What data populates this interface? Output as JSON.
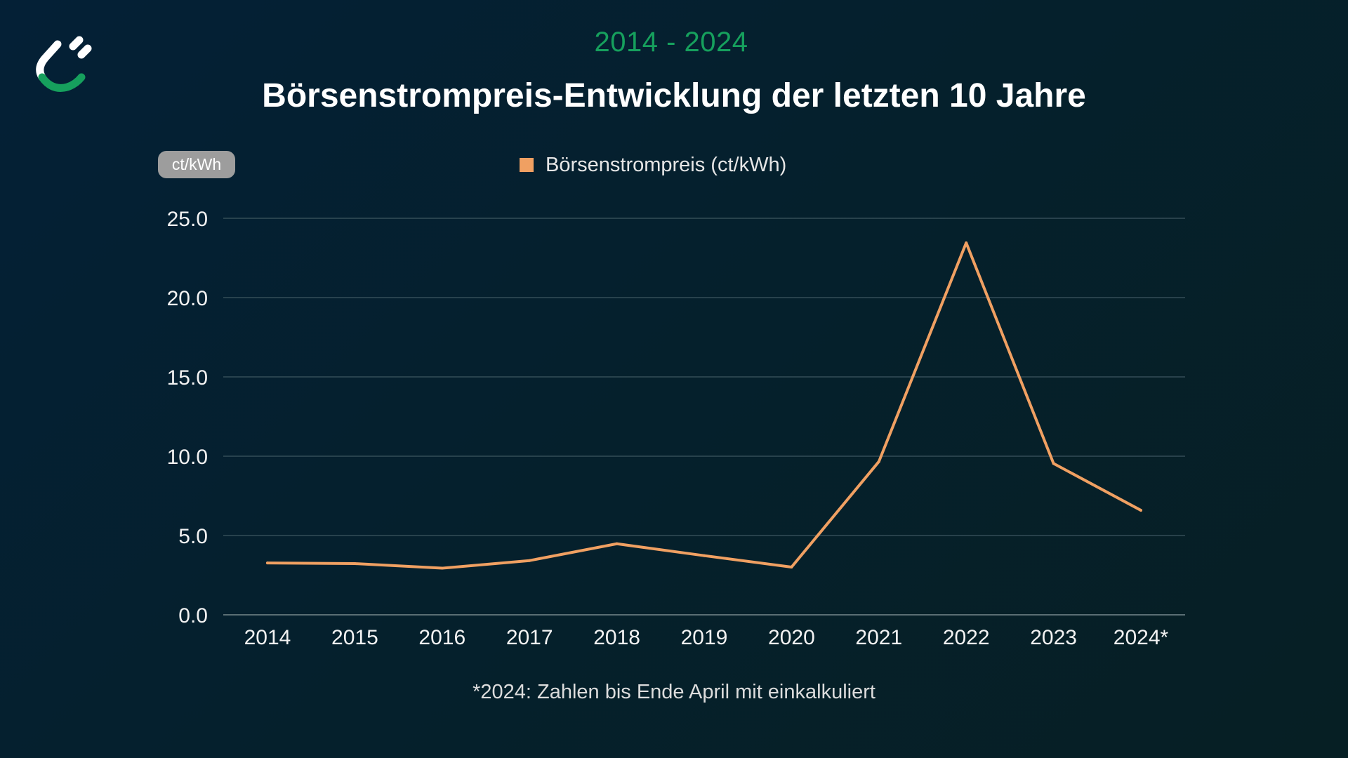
{
  "header": {
    "subtitle": "2014 - 2024",
    "title": "Börsenstrompreis-Entwicklung der letzten 10 Jahre"
  },
  "logo": {
    "icon": "plug-icon"
  },
  "unit_badge": "ct/kWh",
  "footnote": "*2024: Zahlen bis Ende April mit einkalkuliert",
  "colors": {
    "accent_green": "#16a05d",
    "series": "#f0a062",
    "gridline": "#3d5660",
    "badge": "#9d9d9d"
  },
  "chart_data": {
    "type": "line",
    "title": "Börsenstrompreis-Entwicklung der letzten 10 Jahre",
    "subtitle": "2014 - 2024",
    "xlabel": "",
    "ylabel": "ct/kWh",
    "categories": [
      "2014",
      "2015",
      "2016",
      "2017",
      "2018",
      "2019",
      "2020",
      "2021",
      "2022",
      "2023",
      "2024*"
    ],
    "series": [
      {
        "name": "Börsenstrompreis (ct/kWh)",
        "color": "#f0a062",
        "values": [
          3.27,
          3.23,
          2.94,
          3.42,
          4.48,
          3.73,
          3.01,
          9.66,
          23.45,
          9.54,
          6.59
        ]
      }
    ],
    "ylim": [
      0,
      25
    ],
    "yticks": [
      0,
      5,
      10,
      15,
      20,
      25
    ],
    "ytick_labels": [
      "0.0",
      "5.0",
      "10.0",
      "15.0",
      "20.0",
      "25.0"
    ],
    "grid": true,
    "legend_position": "top-center",
    "annotations": [
      "*2024: Zahlen bis Ende April mit einkalkuliert"
    ]
  }
}
